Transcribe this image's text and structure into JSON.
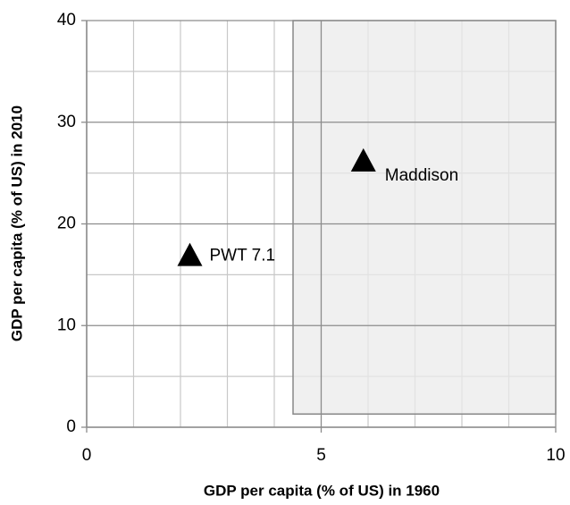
{
  "chart_data": {
    "type": "scatter",
    "x_label": "GDP per capita (% of US) in 1960",
    "y_label": "GDP per capita (% of US) in 2010",
    "x": [
      2.2,
      5.9
    ],
    "values": [
      17,
      26.3
    ],
    "point_labels": [
      "PWT 7.1",
      "Maddison"
    ],
    "color": "#000000",
    "marker": "triangle",
    "shaded_region": {
      "xlim": [
        4.4,
        10
      ],
      "ylim": [
        1.3,
        40
      ],
      "color": "#ebebeb"
    },
    "xlim": [
      0,
      10
    ],
    "xticks": [
      0,
      5,
      10
    ],
    "ylim": [
      0,
      40
    ],
    "yticks": [
      0,
      10,
      20,
      30,
      40
    ],
    "xminorticks": [
      1,
      2,
      3,
      4,
      6,
      7,
      8,
      9
    ],
    "yminorticks": [
      5,
      15,
      25,
      35
    ],
    "grid": true
  }
}
